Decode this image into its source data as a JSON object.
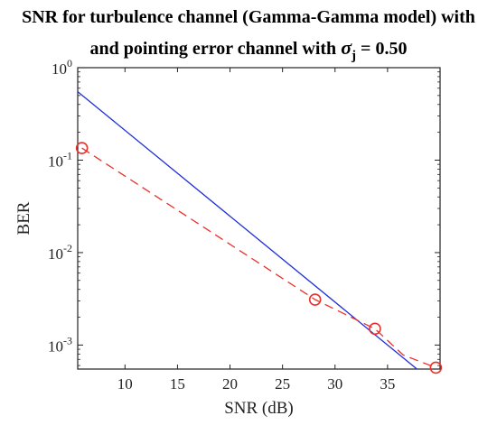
{
  "title": {
    "line1": "SNR for turbulence channel (Gamma-Gamma model) with",
    "line2_prefix": "and pointing error channel with",
    "sigma_symbol": "σ",
    "sigma_subscript": "j",
    "line2_suffix": "= 0.50"
  },
  "chart_data": {
    "type": "line",
    "xlabel": "SNR (dB)",
    "ylabel": "BER",
    "xlim": [
      5.5,
      40
    ],
    "ylim": [
      0.00055,
      1
    ],
    "y_scale": "log",
    "x_ticks": [
      10,
      15,
      20,
      25,
      30,
      35
    ],
    "x_tick_labels": [
      "10",
      "15",
      "20",
      "25",
      "30",
      "35"
    ],
    "y_ticks": [
      0.001,
      0.01,
      0.1,
      1
    ],
    "y_tick_labels": [
      {
        "base": "10",
        "exp": "-3"
      },
      {
        "base": "10",
        "exp": "-2"
      },
      {
        "base": "10",
        "exp": "-1"
      },
      {
        "base": "10",
        "exp": "0"
      }
    ],
    "grid": false,
    "series": [
      {
        "style": "solid",
        "color": "#1f2fd6",
        "marker": "none",
        "x": [
          5.5,
          37.8
        ],
        "y": [
          0.55,
          0.00055
        ]
      },
      {
        "style": "dashed",
        "color": "#e8312a",
        "marker": "none",
        "x": [
          5.9,
          28.1,
          33.8,
          36.5,
          39.6
        ],
        "y": [
          0.135,
          0.0031,
          0.0015,
          0.00078,
          0.00057
        ]
      },
      {
        "style": "markers",
        "color": "#e8312a",
        "marker": "circle",
        "x": [
          5.9,
          28.1,
          33.8,
          39.6
        ],
        "y": [
          0.135,
          0.0031,
          0.0015,
          0.00057
        ]
      }
    ]
  }
}
